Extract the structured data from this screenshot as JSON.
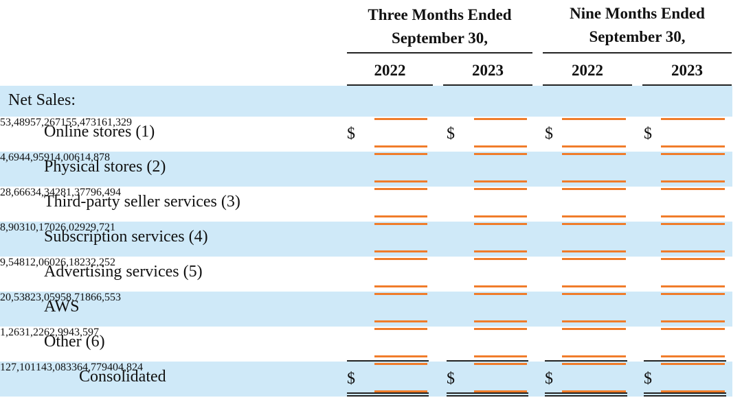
{
  "headers": {
    "three_months": [
      "Three Months Ended",
      "September 30,"
    ],
    "nine_months": [
      "Nine Months Ended",
      "September 30,"
    ],
    "years": [
      "2022",
      "2023",
      "2022",
      "2023"
    ]
  },
  "section_label": "Net Sales:",
  "currency_symbol": "$",
  "rows": [
    {
      "label": "Online stores (1)",
      "values": [
        "53,489",
        "57,267",
        "155,473",
        "161,329"
      ],
      "dollar": true
    },
    {
      "label": "Physical stores (2)",
      "values": [
        "4,694",
        "4,959",
        "14,006",
        "14,878"
      ],
      "dollar": false
    },
    {
      "label": "Third-party seller services (3)",
      "values": [
        "28,666",
        "34,342",
        "81,377",
        "96,494"
      ],
      "dollar": false
    },
    {
      "label": "Subscription services (4)",
      "values": [
        "8,903",
        "10,170",
        "26,029",
        "29,721"
      ],
      "dollar": false
    },
    {
      "label": "Advertising services (5)",
      "values": [
        "9,548",
        "12,060",
        "26,182",
        "32,252"
      ],
      "dollar": false
    },
    {
      "label": "AWS",
      "values": [
        "20,538",
        "23,059",
        "58,718",
        "66,553"
      ],
      "dollar": false
    },
    {
      "label": "Other (6)",
      "values": [
        "1,263",
        "1,226",
        "2,994",
        "3,597"
      ],
      "dollar": false
    }
  ],
  "total": {
    "label": "Consolidated",
    "values": [
      "127,101",
      "143,083",
      "364,779",
      "404,824"
    ]
  },
  "colors": {
    "shade": "#cfe9f8",
    "highlight": "#f07c2a"
  }
}
